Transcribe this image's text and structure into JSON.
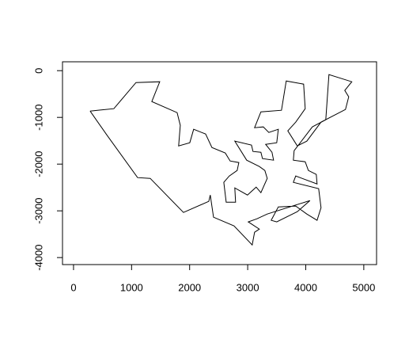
{
  "chart_data": {
    "type": "line",
    "x": [
      286,
      695,
      1076,
      1485,
      1348,
      1784,
      1839,
      1811,
      2002,
      2070,
      2275,
      2384,
      2615,
      2697,
      2847,
      2819,
      2683,
      2588,
      2629,
      2792,
      2778,
      2996,
      3146,
      3228,
      3337,
      3296,
      3201,
      2983,
      2778,
      3065,
      3092,
      3228,
      3255,
      3446,
      3419,
      3310,
      3500,
      3528,
      3364,
      3269,
      3119,
      3228,
      3582,
      3664,
      3963,
      3991,
      3827,
      3691,
      3855,
      4018,
      4263,
      4685,
      4740,
      4672,
      4794,
      4399,
      4345,
      4113,
      3800,
      3786,
      3991,
      4045,
      4181,
      4195,
      3827,
      3786,
      4222,
      4263,
      4195,
      4018,
      3827,
      3528,
      3405,
      3500,
      3855,
      4072,
      3337,
      3160,
      3010,
      3201,
      3119,
      3078,
      2765,
      2411,
      2356,
      2329,
      1893,
      1321,
      1103,
      572,
      286
    ],
    "series": [
      {
        "color": "#000000",
        "values": [
          -864,
          -814,
          -254,
          -237,
          -661,
          -898,
          -1170,
          -1610,
          -1542,
          -1254,
          -1356,
          -1644,
          -1763,
          -1932,
          -1966,
          -2136,
          -2254,
          -2390,
          -2814,
          -2814,
          -2509,
          -2661,
          -2492,
          -2610,
          -2305,
          -2136,
          -2051,
          -1915,
          -1509,
          -1593,
          -1729,
          -1746,
          -1881,
          -1915,
          -1746,
          -1576,
          -1542,
          -1254,
          -1322,
          -1203,
          -1220,
          -881,
          -848,
          -220,
          -288,
          -814,
          -1102,
          -1288,
          -1610,
          -1509,
          -1102,
          -831,
          -559,
          -424,
          -237,
          -85,
          -1051,
          -1203,
          -1712,
          -1915,
          -1949,
          -2136,
          -2220,
          -2424,
          -2254,
          -2390,
          -2526,
          -2932,
          -3203,
          -3068,
          -2898,
          -2915,
          -3203,
          -3237,
          -3017,
          -2780,
          -3068,
          -3170,
          -3237,
          -3390,
          -3458,
          -3729,
          -3322,
          -3136,
          -2661,
          -2797,
          -3034,
          -2305,
          -2288,
          -1373,
          -864
        ]
      }
    ],
    "xlim": [
      -190,
      5220
    ],
    "xticks": [
      0,
      1000,
      2000,
      3000,
      4000,
      5000
    ],
    "ylim": [
      -4150,
      190
    ],
    "yticks": [
      0,
      -1000,
      -2000,
      -3000,
      -4000
    ]
  }
}
